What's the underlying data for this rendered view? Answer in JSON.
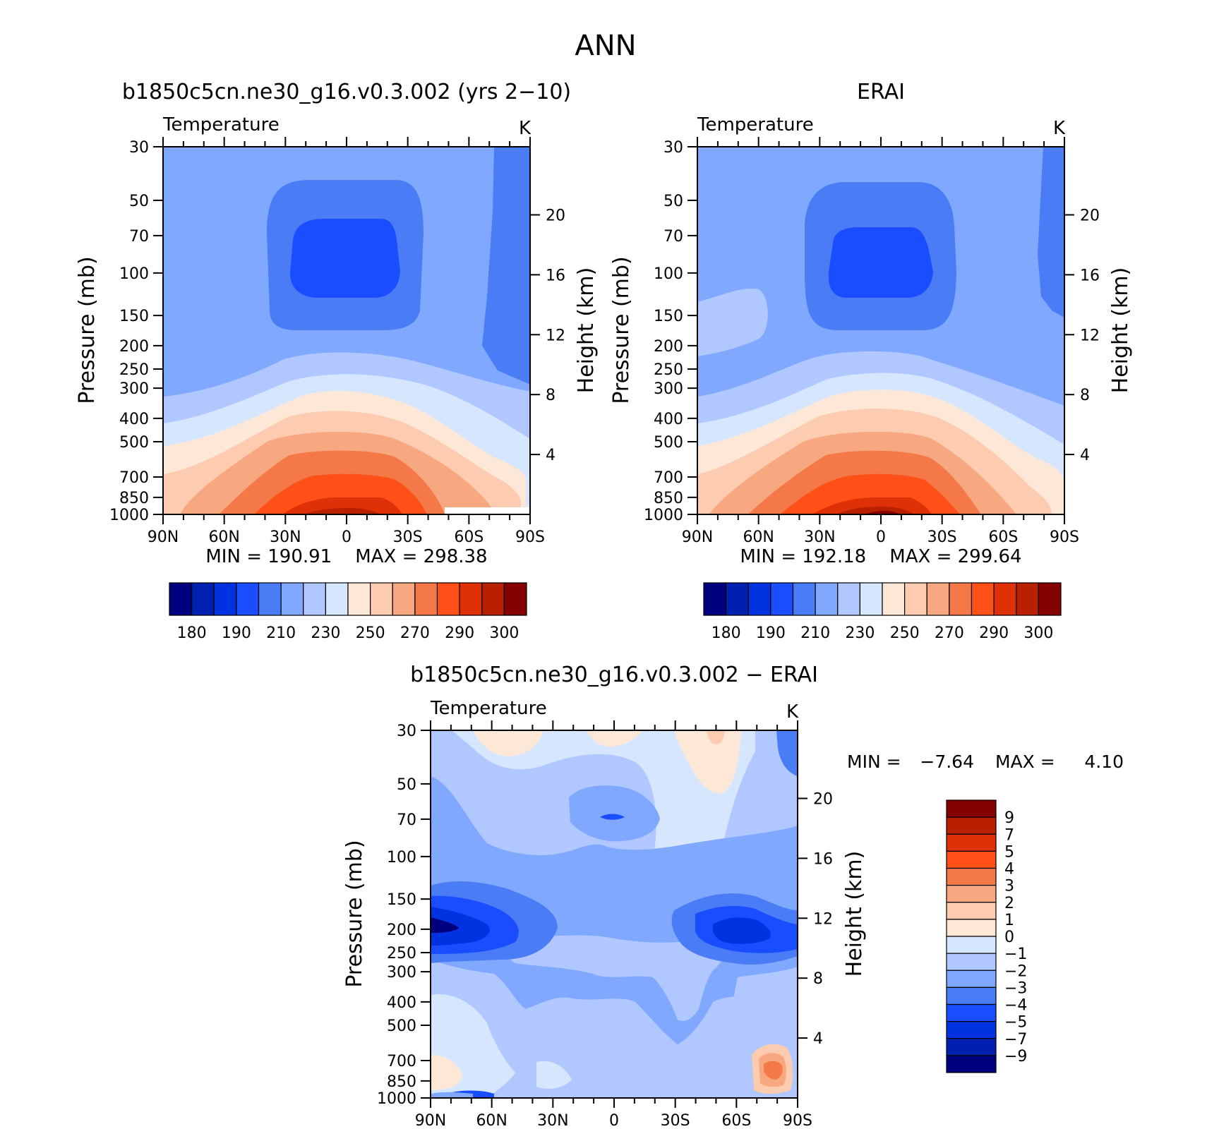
{
  "figure": {
    "season": "ANN"
  },
  "colors": {
    "absolute_palette": [
      "#00007f",
      "#0020b0",
      "#0032e0",
      "#1a4dff",
      "#4a7cf5",
      "#80a8ff",
      "#b0c8ff",
      "#d6e6ff",
      "#fde8d8",
      "#fccbb0",
      "#f8a880",
      "#f47848",
      "#ff5018",
      "#e03008",
      "#b82000",
      "#850000"
    ],
    "diff_palette": [
      "#00007f",
      "#0020b0",
      "#0032e0",
      "#1a4dff",
      "#4a7cf5",
      "#80a8ff",
      "#b0c8ff",
      "#d6e6ff",
      "#fde8d8",
      "#fccbb0",
      "#f8a880",
      "#f47848",
      "#ff5018",
      "#e03008",
      "#b82000",
      "#850000"
    ]
  },
  "chart_data": [
    {
      "type": "contour",
      "title": "b1850c5cn.ne30_g16.v0.3.002 (yrs 2−10)",
      "subtitle": "Temperature",
      "units": "K",
      "ylabel": "Pressure (mb)",
      "y2label": "Height (km)",
      "x_ticks": [
        "90N",
        "60N",
        "30N",
        "0",
        "30S",
        "60S",
        "90S"
      ],
      "x_range": [
        90,
        -90
      ],
      "y_ticks": [
        30,
        50,
        70,
        100,
        150,
        200,
        250,
        300,
        400,
        500,
        700,
        850,
        1000
      ],
      "y_range": [
        1000,
        30
      ],
      "y_scale": "log",
      "y2_ticks": [
        4,
        8,
        12,
        16,
        20
      ],
      "min_label": "MIN = 190.91",
      "max_label": "MAX = 298.38",
      "min": 190.91,
      "max": 298.38,
      "contour_levels": [
        180,
        185,
        190,
        200,
        210,
        220,
        230,
        240,
        250,
        260,
        270,
        280,
        290,
        295,
        300
      ],
      "colorbar_labels": [
        "180",
        "190",
        "210",
        "230",
        "250",
        "270",
        "290",
        "300"
      ]
    },
    {
      "type": "contour",
      "title": "ERAI",
      "subtitle": "Temperature",
      "units": "K",
      "ylabel": "Pressure (mb)",
      "y2label": "Height (km)",
      "x_ticks": [
        "90N",
        "60N",
        "30N",
        "0",
        "30S",
        "60S",
        "90S"
      ],
      "x_range": [
        90,
        -90
      ],
      "y_ticks": [
        30,
        50,
        70,
        100,
        150,
        200,
        250,
        300,
        400,
        500,
        700,
        850,
        1000
      ],
      "y_range": [
        1000,
        30
      ],
      "y_scale": "log",
      "y2_ticks": [
        4,
        8,
        12,
        16,
        20
      ],
      "min_label": "MIN = 192.18",
      "max_label": "MAX = 299.64",
      "min": 192.18,
      "max": 299.64,
      "contour_levels": [
        180,
        185,
        190,
        200,
        210,
        220,
        230,
        240,
        250,
        260,
        270,
        280,
        290,
        295,
        300
      ],
      "colorbar_labels": [
        "180",
        "190",
        "210",
        "230",
        "250",
        "270",
        "290",
        "300"
      ]
    },
    {
      "type": "contour",
      "title": "b1850c5cn.ne30_g16.v0.3.002 − ERAI",
      "subtitle": "Temperature",
      "units": "K",
      "ylabel": "Pressure (mb)",
      "y2label": "Height (km)",
      "x_ticks": [
        "90N",
        "60N",
        "30N",
        "0",
        "30S",
        "60S",
        "90S"
      ],
      "x_range": [
        90,
        -90
      ],
      "y_ticks": [
        30,
        50,
        70,
        100,
        150,
        200,
        250,
        300,
        400,
        500,
        700,
        850,
        1000
      ],
      "y_range": [
        1000,
        30
      ],
      "y_scale": "log",
      "y2_ticks": [
        4,
        8,
        12,
        16,
        20
      ],
      "min_label": "MIN =",
      "min_value": "−7.64",
      "max_label": "MAX =",
      "max_value": "4.10",
      "min": -7.64,
      "max": 4.1,
      "contour_levels": [
        -9,
        -7,
        -5,
        -4,
        -3,
        -2,
        -1,
        0,
        1,
        2,
        3,
        4,
        5,
        7,
        9
      ],
      "colorbar_labels": [
        "9",
        "7",
        "5",
        "4",
        "3",
        "2",
        "1",
        "0",
        "−1",
        "−2",
        "−3",
        "−4",
        "−5",
        "−7",
        "−9"
      ]
    }
  ]
}
